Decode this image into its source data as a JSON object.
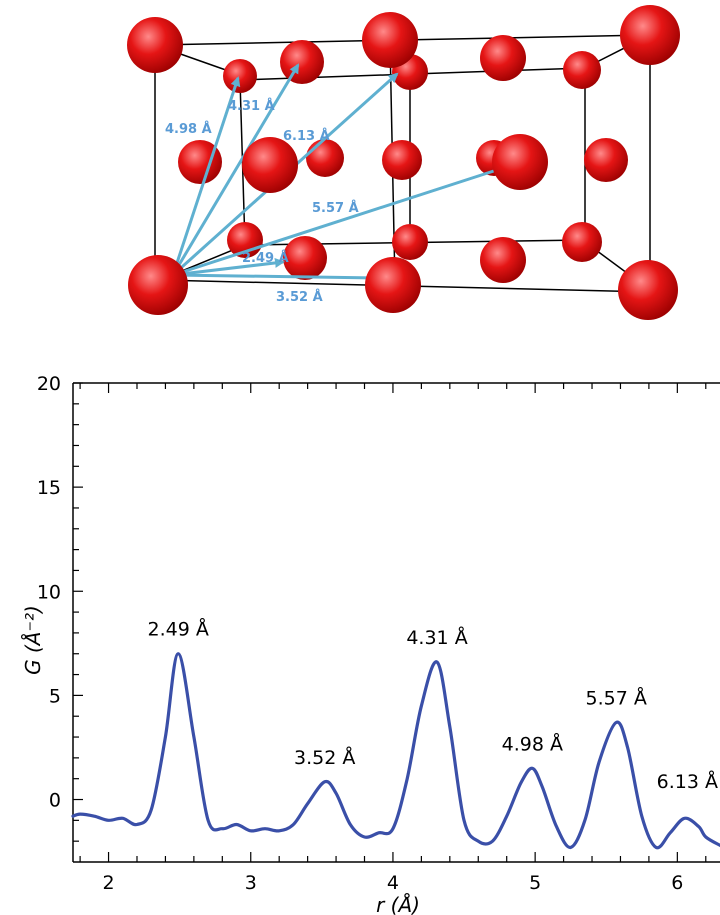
{
  "structure": {
    "distance_labels": [
      "4.98 Å",
      "4.31 Å",
      "6.13 Å",
      "5.57 Å",
      "2.49 Å",
      "3.52 Å"
    ],
    "colors": {
      "atom": "#e01010",
      "arrow": "#5fb0d0",
      "label": "#5a9bd5",
      "cell": "#000000"
    }
  },
  "chart_data": {
    "type": "line",
    "xlabel": "r (Å)",
    "ylabel": "G (Å⁻²)",
    "xlim": [
      1.75,
      6.3
    ],
    "ylim": [
      -3,
      20
    ],
    "xticks": [
      2,
      3,
      4,
      5,
      6
    ],
    "yticks": [
      0,
      5,
      10,
      15,
      20
    ],
    "series": [
      {
        "color": "#3a4fa8",
        "x": [
          1.75,
          1.8,
          1.9,
          2.0,
          2.1,
          2.2,
          2.3,
          2.4,
          2.49,
          2.6,
          2.7,
          2.8,
          2.9,
          3.0,
          3.1,
          3.2,
          3.3,
          3.4,
          3.52,
          3.6,
          3.7,
          3.8,
          3.9,
          4.0,
          4.1,
          4.2,
          4.31,
          4.4,
          4.5,
          4.6,
          4.7,
          4.8,
          4.9,
          4.98,
          5.05,
          5.15,
          5.25,
          5.35,
          5.45,
          5.57,
          5.65,
          5.75,
          5.85,
          5.95,
          6.05,
          6.15,
          6.2,
          6.3
        ],
        "y": [
          -0.8,
          -0.7,
          -0.8,
          -1.0,
          -0.9,
          -1.2,
          -0.5,
          3.0,
          7.0,
          3.0,
          -1.0,
          -1.4,
          -1.2,
          -1.5,
          -1.4,
          -1.5,
          -1.2,
          -0.2,
          0.85,
          0.3,
          -1.2,
          -1.8,
          -1.6,
          -1.4,
          1.0,
          4.5,
          6.6,
          3.5,
          -1.0,
          -2.0,
          -2.0,
          -0.8,
          0.8,
          1.5,
          0.6,
          -1.3,
          -2.3,
          -1.0,
          1.8,
          3.7,
          2.5,
          -0.8,
          -2.3,
          -1.6,
          -0.9,
          -1.3,
          -1.8,
          -2.2
        ]
      }
    ],
    "annotations": [
      {
        "text": "2.49 Å",
        "x": 2.49,
        "y": 7.0
      },
      {
        "text": "3.52 Å",
        "x": 3.52,
        "y": 0.85
      },
      {
        "text": "4.31 Å",
        "x": 4.31,
        "y": 6.6
      },
      {
        "text": "4.98 Å",
        "x": 4.98,
        "y": 1.5
      },
      {
        "text": "5.57 Å",
        "x": 5.57,
        "y": 3.7
      },
      {
        "text": "6.13 Å",
        "x": 6.13,
        "y": -0.3
      }
    ]
  }
}
